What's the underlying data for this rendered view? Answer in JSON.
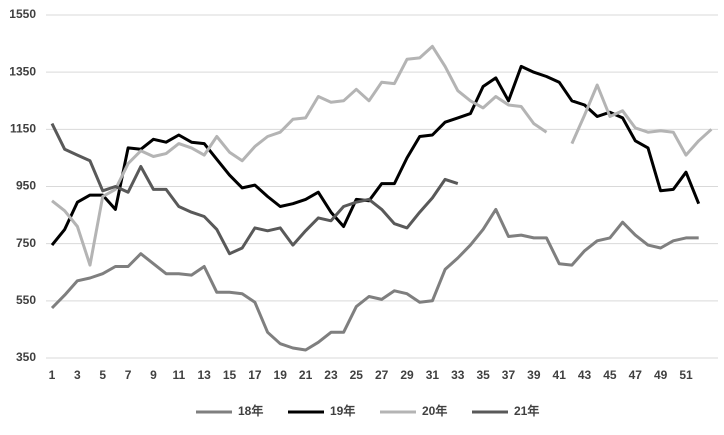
{
  "chart_data": {
    "type": "line",
    "categories": [
      1,
      null,
      3,
      null,
      5,
      null,
      7,
      null,
      9,
      null,
      11,
      null,
      13,
      null,
      15,
      null,
      17,
      null,
      19,
      null,
      21,
      null,
      23,
      null,
      25,
      null,
      27,
      null,
      29,
      null,
      31,
      null,
      33,
      null,
      35,
      null,
      37,
      null,
      39,
      null,
      41,
      null,
      43,
      null,
      45,
      null,
      47,
      null,
      49,
      null,
      51,
      null,
      null
    ],
    "series": [
      {
        "name": "18年",
        "color": "#7f7f7f",
        "values": [
          525,
          570,
          620,
          630,
          645,
          670,
          670,
          715,
          680,
          645,
          645,
          640,
          670,
          580,
          580,
          575,
          545,
          440,
          400,
          385,
          378,
          405,
          440,
          440,
          530,
          565,
          555,
          585,
          575,
          545,
          550,
          660,
          700,
          745,
          800,
          870,
          775,
          780,
          770,
          770,
          680,
          675,
          725,
          760,
          770,
          825,
          780,
          745,
          735,
          760,
          770,
          770,
          null
        ]
      },
      {
        "name": "19年",
        "color": "#000000",
        "values": [
          745,
          800,
          895,
          920,
          920,
          870,
          1085,
          1080,
          1115,
          1105,
          1130,
          1105,
          1100,
          1045,
          990,
          945,
          955,
          915,
          880,
          890,
          905,
          930,
          860,
          810,
          905,
          900,
          960,
          960,
          1050,
          1125,
          1130,
          1175,
          1190,
          1205,
          1300,
          1330,
          1250,
          1370,
          1350,
          1335,
          1315,
          1250,
          1235,
          1195,
          1210,
          1190,
          1110,
          1085,
          935,
          940,
          1000,
          890,
          null
        ]
      },
      {
        "name": "20年",
        "color": "#b4b4b4",
        "values": [
          900,
          865,
          810,
          675,
          915,
          940,
          1030,
          1075,
          1055,
          1065,
          1100,
          1085,
          1060,
          1125,
          1070,
          1040,
          1090,
          1125,
          1140,
          1185,
          1190,
          1265,
          1245,
          1250,
          1290,
          1250,
          1315,
          1310,
          1395,
          1400,
          1440,
          1370,
          1285,
          1250,
          1225,
          1265,
          1235,
          1230,
          1170,
          1140,
          null,
          1100,
          1200,
          1305,
          1195,
          1215,
          1155,
          1140,
          1145,
          1140,
          1060,
          1110,
          1150
        ]
      },
      {
        "name": "21年",
        "color": "#595959",
        "values": [
          1170,
          1080,
          1060,
          1040,
          935,
          950,
          930,
          1020,
          940,
          940,
          880,
          860,
          845,
          800,
          715,
          735,
          805,
          795,
          805,
          745,
          795,
          840,
          830,
          880,
          895,
          905,
          870,
          820,
          805,
          860,
          910,
          975,
          960,
          null,
          null,
          null,
          null,
          null,
          null,
          null,
          null,
          null,
          null,
          null,
          null,
          null,
          null,
          null,
          null,
          null,
          null,
          null,
          null
        ]
      }
    ],
    "ylim": [
      350,
      1550
    ],
    "yticks": [
      350,
      550,
      750,
      950,
      1150,
      1350,
      1550
    ],
    "grid": true,
    "legend": "bottom"
  }
}
